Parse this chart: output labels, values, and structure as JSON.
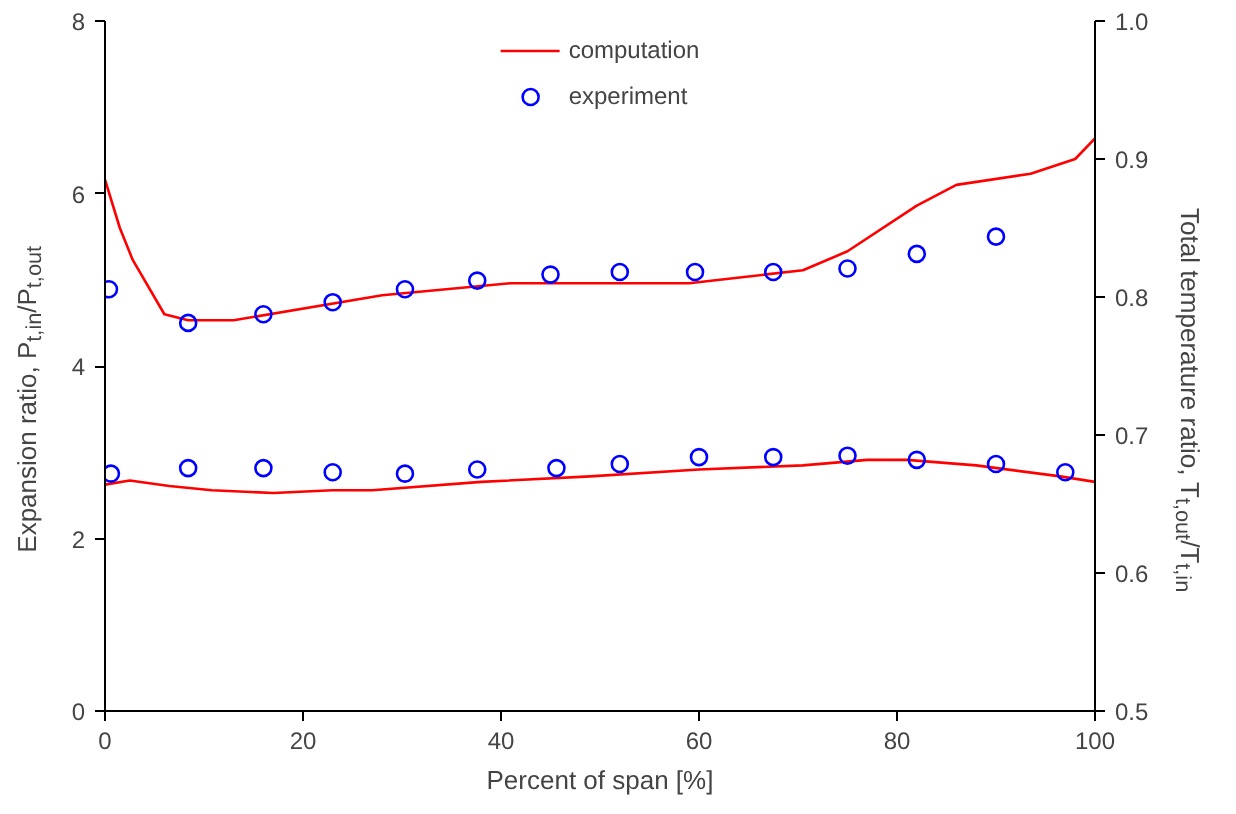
{
  "chart_data": {
    "type": "line",
    "xlabel": "Percent of span [%]",
    "ylabel": "Expansion ratio, P$_{t,in}$/P$_{t,out}$",
    "y2label": "Total temperature ratio, T$_{t,out}$/T$_{t,in}$",
    "xlim": [
      0,
      100
    ],
    "xticks": [
      0,
      20,
      40,
      60,
      80,
      100
    ],
    "ylim": [
      0,
      8
    ],
    "yticks": [
      0,
      2,
      4,
      6,
      8
    ],
    "y2lim": [
      0.5,
      1.0
    ],
    "y2ticks": [
      {
        "value": 0.5,
        "label": "0.5"
      },
      {
        "value": 0.6,
        "label": "0.6"
      },
      {
        "value": 0.7,
        "label": "0.7"
      },
      {
        "value": 0.8,
        "label": "0.8"
      },
      {
        "value": 0.9,
        "label": "0.9"
      },
      {
        "value": 1.0,
        "label": "1.0"
      }
    ],
    "grid": false,
    "legend": "top",
    "series": [
      {
        "name": "computation",
        "color": "#ff0000",
        "marker": "none",
        "line_style": "solid",
        "x": [
          0,
          1.5,
          2.8,
          6,
          8.4,
          13,
          28,
          41,
          59,
          70.5,
          75,
          82,
          86,
          93.5,
          98,
          100
        ],
        "values": [
          6.16,
          5.6,
          5.23,
          4.6,
          4.53,
          4.53,
          4.82,
          4.96,
          4.96,
          5.11,
          5.33,
          5.86,
          6.1,
          6.23,
          6.4,
          6.64
        ]
      },
      {
        "name": "experiment",
        "type": "scatter",
        "color": "#0000ff",
        "marker": "circle",
        "x": [
          0.4,
          8.4,
          16,
          23,
          30.3,
          37.6,
          45,
          52,
          59.6,
          67.5,
          75,
          82,
          90
        ],
        "values": [
          4.89,
          4.5,
          4.6,
          4.74,
          4.89,
          4.99,
          5.06,
          5.09,
          5.09,
          5.09,
          5.13,
          5.3,
          5.5
        ]
      },
      {
        "axis": "y2",
        "color": "#ff0000",
        "marker": "none",
        "line_style": "solid",
        "x": [
          0,
          2.5,
          6.5,
          10.8,
          17,
          23,
          27,
          38,
          49,
          60,
          70.5,
          77,
          81,
          88,
          96.5,
          100
        ],
        "values": [
          0.664,
          0.667,
          0.663,
          0.66,
          0.658,
          0.66,
          0.66,
          0.666,
          0.67,
          0.675,
          0.678,
          0.682,
          0.682,
          0.678,
          0.67,
          0.666
        ]
      },
      {
        "type": "scatter",
        "axis": "y2",
        "color": "#0000ff",
        "marker": "circle",
        "x": [
          0.6,
          8.4,
          16,
          23,
          30.3,
          37.6,
          45.6,
          52,
          60,
          67.5,
          75,
          82,
          90,
          97
        ],
        "values": [
          0.672,
          0.676,
          0.676,
          0.673,
          0.672,
          0.675,
          0.676,
          0.679,
          0.684,
          0.684,
          0.685,
          0.682,
          0.679,
          0.673
        ]
      }
    ]
  }
}
